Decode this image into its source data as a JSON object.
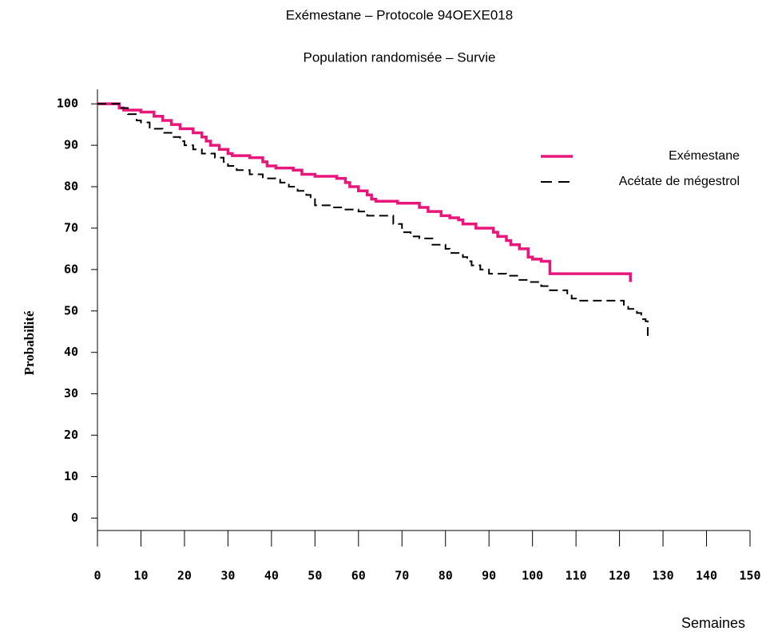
{
  "chart_data": {
    "type": "line",
    "step": true,
    "title": "Exémestane – Protocole 94OEXE018",
    "subtitle": "Population randomisée – Survie",
    "x_label": "Semaines",
    "y_label": "Probabilité",
    "xlim": [
      0,
      150
    ],
    "xticks": [
      0,
      10,
      20,
      30,
      40,
      50,
      60,
      70,
      80,
      90,
      100,
      110,
      120,
      130,
      140,
      150
    ],
    "ylim": [
      -3,
      103.5
    ],
    "yticks": [
      0,
      10,
      20,
      30,
      40,
      50,
      60,
      70,
      80,
      90,
      100
    ],
    "legend": "upper right",
    "series": [
      {
        "name": "Exémestane",
        "color": "#e8167b",
        "dash": false,
        "x": [
          0,
          3,
          5,
          6,
          10,
          13,
          15,
          17,
          19,
          22,
          24,
          25,
          26,
          28,
          30,
          31,
          35,
          38,
          39,
          41,
          45,
          47,
          50,
          55,
          57,
          58,
          60,
          62,
          63,
          64,
          69,
          74,
          76,
          79,
          81,
          83,
          84,
          87,
          90,
          91,
          92,
          94,
          95,
          97,
          99,
          100,
          102,
          104,
          122,
          122.5
        ],
        "values": [
          100,
          100,
          99,
          98.5,
          98,
          97,
          96,
          95,
          94,
          93,
          92,
          91,
          90,
          89,
          88,
          87.5,
          87,
          86,
          85,
          84.5,
          84,
          83,
          82.5,
          82,
          81,
          80,
          79,
          78,
          77,
          76.5,
          76,
          75,
          74,
          73,
          72.5,
          72,
          71,
          70,
          70,
          69,
          68,
          67,
          66,
          65,
          63,
          62.5,
          62,
          59,
          59,
          57
        ]
      },
      {
        "name": "Acétate de mégestrol",
        "color": "#000000",
        "dash": true,
        "x": [
          0,
          3,
          5,
          7,
          9,
          10,
          12,
          15,
          17,
          19,
          20,
          22,
          24,
          27,
          29,
          30,
          32,
          35,
          38,
          42,
          44,
          46,
          48,
          49,
          50,
          54,
          57,
          60,
          62,
          66,
          68,
          70,
          72,
          74,
          77,
          80,
          81,
          84,
          85,
          86,
          88,
          90,
          94,
          97,
          99,
          102,
          104,
          108,
          109,
          110,
          120,
          121,
          122,
          124,
          125,
          126,
          126.5
        ],
        "values": [
          100,
          100,
          99,
          97.5,
          96,
          95.5,
          94,
          93,
          92,
          91,
          90,
          89,
          88,
          87,
          86,
          85,
          84,
          83,
          82,
          81,
          80,
          79,
          78,
          77,
          75.5,
          75,
          74.5,
          74,
          73,
          73,
          71,
          69,
          68,
          67.5,
          66,
          65,
          64,
          63,
          62,
          61,
          60,
          59,
          58.5,
          57.5,
          57,
          56,
          55,
          54,
          53,
          52.5,
          52.5,
          51,
          50.5,
          49.5,
          48,
          47.5,
          44
        ]
      }
    ]
  }
}
